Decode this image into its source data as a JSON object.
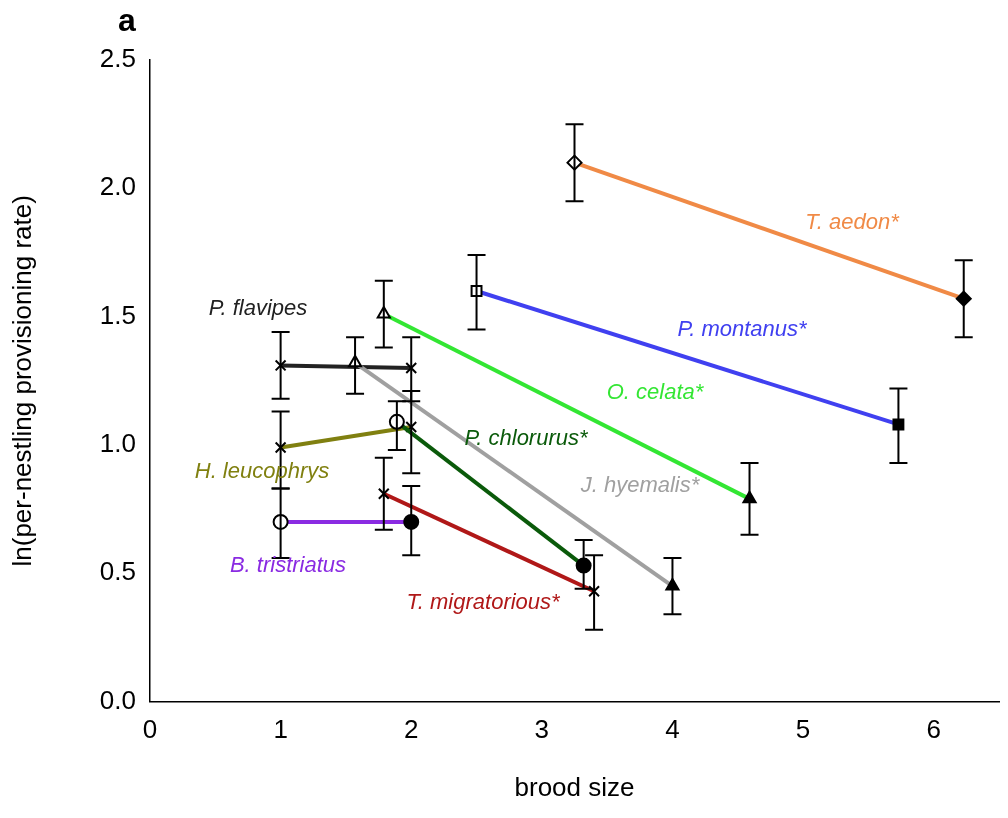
{
  "chart_data": {
    "type": "line",
    "xlabel": "brood size",
    "ylabel": "ln(per-nestling provisioning rate)",
    "annotations": [
      "a"
    ],
    "xlim": [
      0,
      6.5
    ],
    "xticks": [
      0,
      1,
      2,
      3,
      4,
      5,
      6
    ],
    "ylim": [
      0,
      2.5
    ],
    "yticks": [
      {
        "value": 0,
        "label": "0.0"
      },
      0.5,
      {
        "value": 1,
        "label": "1.0"
      },
      1.5,
      {
        "value": 2,
        "label": "2.0"
      },
      2.5
    ],
    "grid": false,
    "legend": false,
    "series": [
      {
        "name": "T. aedon*",
        "color": "#f08a46",
        "marker": "diamond",
        "colors": [
          "#ffffff",
          "#000000"
        ],
        "x": [
          3.25,
          6.23
        ],
        "values": [
          2.1,
          1.57
        ],
        "errors": [
          [
            1.95,
            2.25
          ],
          [
            1.42,
            1.72
          ]
        ]
      },
      {
        "name": "P. montanus*",
        "color": "#4040f0",
        "marker": "square",
        "colors": [
          "#ffffff",
          "#000000"
        ],
        "x": [
          2.5,
          5.73
        ],
        "values": [
          1.6,
          1.08
        ],
        "errors": [
          [
            1.45,
            1.74
          ],
          [
            0.93,
            1.22
          ]
        ]
      },
      {
        "name": "O. celata*",
        "color": "#33e633",
        "marker": "triangle",
        "colors": [
          "#ffffff",
          "#000000"
        ],
        "x": [
          1.79,
          4.59
        ],
        "values": [
          1.51,
          0.79
        ],
        "errors": [
          [
            1.38,
            1.64
          ],
          [
            0.65,
            0.93
          ]
        ]
      },
      {
        "name": "J. hyemalis*",
        "color": "#a0a0a0",
        "marker": "triangle",
        "colors": [
          "#ffffff",
          "#000000"
        ],
        "x": [
          1.57,
          4.0
        ],
        "values": [
          1.32,
          0.45
        ],
        "errors": [
          [
            1.2,
            1.42
          ],
          [
            0.34,
            0.56
          ]
        ]
      },
      {
        "name": "P. flavipes",
        "color": "#222222",
        "marker": "cross",
        "colors": [
          "#ffffff",
          "#000000"
        ],
        "x": [
          1.0,
          2.0
        ],
        "values": [
          1.31,
          1.3
        ],
        "errors": [
          [
            1.18,
            1.44
          ],
          [
            1.17,
            1.42
          ]
        ]
      },
      {
        "name": "P. chlorurus*",
        "color": "#0a5a0a",
        "marker": "circle",
        "colors": [
          "#ffffff",
          "#000000"
        ],
        "x": [
          1.89,
          3.32
        ],
        "values": [
          1.09,
          0.53
        ],
        "errors": [
          [
            0.98,
            1.17
          ],
          [
            0.44,
            0.63
          ]
        ]
      },
      {
        "name": "H. leucophrys",
        "color": "#808010",
        "marker": "cross",
        "colors": [
          "#000000",
          "#000000"
        ],
        "x": [
          1.0,
          2.0
        ],
        "values": [
          0.99,
          1.07
        ],
        "errors": [
          [
            0.83,
            1.13
          ],
          [
            0.89,
            1.21
          ]
        ]
      },
      {
        "name": "B. tristriatus",
        "color": "#8a2be2",
        "marker": "circle",
        "colors": [
          "#ffffff",
          "#000000"
        ],
        "x": [
          1.0,
          2.0
        ],
        "values": [
          0.7,
          0.7
        ],
        "errors": [
          [
            0.56,
            0.83
          ],
          [
            0.57,
            0.84
          ]
        ]
      },
      {
        "name": "T. migratorious*",
        "color": "#b01818",
        "marker": "cross",
        "colors": [
          "#ffffff",
          "#000000"
        ],
        "x": [
          1.79,
          3.4
        ],
        "values": [
          0.81,
          0.43
        ],
        "errors": [
          [
            0.67,
            0.95
          ],
          [
            0.28,
            0.57
          ]
        ]
      }
    ]
  }
}
